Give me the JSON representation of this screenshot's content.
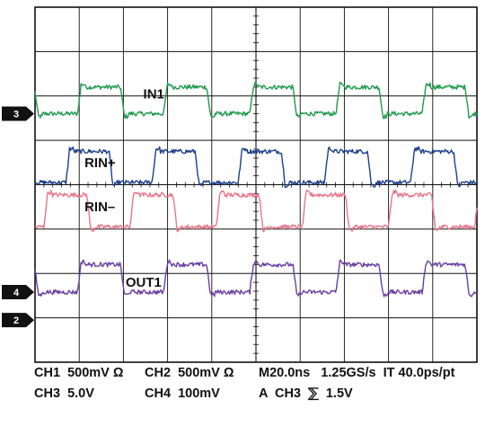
{
  "chart_data": {
    "type": "line",
    "title": "",
    "xlabel": "",
    "ylabel": "",
    "grid": true,
    "divisions": {
      "x": 10,
      "y": 8
    },
    "xlim": [
      0,
      10
    ],
    "ylim": [
      0,
      8
    ],
    "period_divisions": 1.95,
    "first_rise_division": 2.0,
    "series": [
      {
        "name": "IN1",
        "color": "#1f9a4e",
        "high": 6.2,
        "low": 5.6,
        "duty": 0.5,
        "phase": 0.96,
        "noise": 0.05
      },
      {
        "name": "RIN+",
        "color": "#1d3f8c",
        "high": 4.75,
        "low": 4.05,
        "duty": 0.5,
        "phase": 0.7,
        "noise": 0.05
      },
      {
        "name": "RIN–",
        "color": "#e8768a",
        "high": 3.77,
        "low": 3.05,
        "duty": 0.5,
        "phase": 0.2,
        "noise": 0.05
      },
      {
        "name": "OUT1",
        "color": "#6a3ea1",
        "high": 2.2,
        "low": 1.58,
        "duty": 0.5,
        "phase": 0.96,
        "noise": 0.05
      }
    ],
    "markers": [
      {
        "label": "3",
        "level": 5.6
      },
      {
        "label": "4",
        "level": 1.58
      },
      {
        "label": "2",
        "level": 0.95
      }
    ]
  },
  "status": {
    "ch1": "CH1  500mV Ω",
    "ch2": "CH2  500mV Ω",
    "timebase": "M20.0ns   1.25GS/s  IT 40.0ps/pt",
    "ch3": "CH3  5.0V",
    "ch4": "CH4  100mV",
    "trigger": "A  CH3  ⅀  1.5V"
  }
}
